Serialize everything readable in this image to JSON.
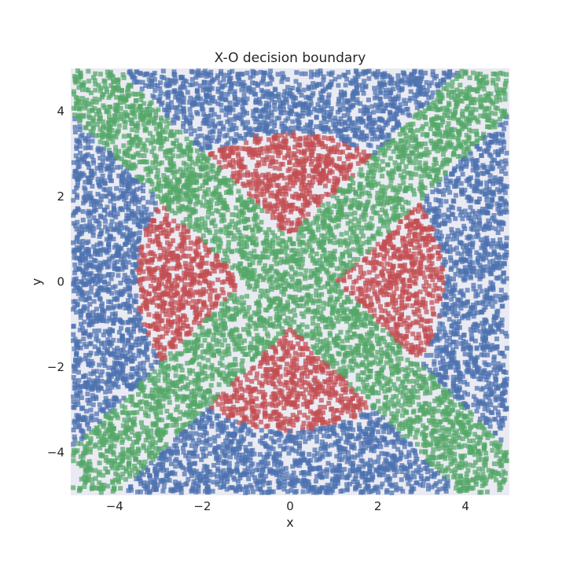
{
  "chart_data": {
    "type": "scatter",
    "title": "X-O decision boundary",
    "xlabel": "x",
    "ylabel": "y",
    "xlim": [
      -5,
      5
    ],
    "ylim": [
      -5,
      5
    ],
    "xticks": [
      -4,
      -2,
      0,
      2,
      4
    ],
    "yticks": [
      -4,
      -2,
      0,
      2,
      4
    ],
    "grid": false,
    "legend": "none",
    "background_color": "#eaeaf2",
    "marker": "square",
    "classes": [
      {
        "color": "#4c72b0",
        "region": "outside circle of radius 3.5, away from both diagonals"
      },
      {
        "color": "#c44e52",
        "region": "inside circle of radius 3.5, away from both diagonals"
      },
      {
        "color": "#55a868",
        "region": "band of half-width 0.75 around the diagonals y = x and y = -x"
      }
    ],
    "circle_radius": 3.5,
    "diagonal_band_half_width": 0.75,
    "approx_points": 11000
  }
}
